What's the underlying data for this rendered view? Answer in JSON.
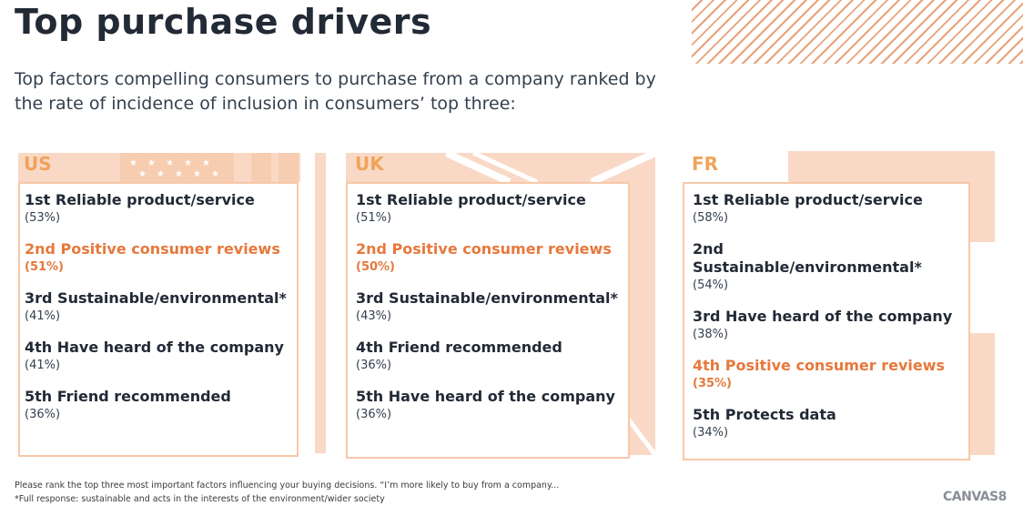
{
  "title": "Top purchase drivers",
  "subtitle": "Top factors compelling consumers to purchase from a company ranked by the rate of incidence of inclusion in consumers’ top three:",
  "colors": {
    "accent": "#e6783c",
    "country": "#f0a35a",
    "border": "#f7c8a8",
    "flag_bg": "#f9d9c5"
  },
  "panels": [
    {
      "country": "US",
      "items": [
        {
          "rank": "1st Reliable product/service",
          "pct": "(53%)",
          "highlight": false
        },
        {
          "rank": "2nd Positive consumer reviews",
          "pct": "(51%)",
          "highlight": true
        },
        {
          "rank": "3rd Sustainable/environmental*",
          "pct": "(41%)",
          "highlight": false
        },
        {
          "rank": "4th Have heard of the company",
          "pct": "(41%)",
          "highlight": false
        },
        {
          "rank": "5th Friend recommended",
          "pct": "(36%)",
          "highlight": false
        }
      ]
    },
    {
      "country": "UK",
      "items": [
        {
          "rank": "1st Reliable product/service",
          "pct": "(51%)",
          "highlight": false
        },
        {
          "rank": "2nd Positive consumer reviews",
          "pct": "(50%)",
          "highlight": true
        },
        {
          "rank": "3rd Sustainable/environmental*",
          "pct": "(43%)",
          "highlight": false
        },
        {
          "rank": "4th Friend recommended",
          "pct": "(36%)",
          "highlight": false
        },
        {
          "rank": "5th Have heard of the company",
          "pct": "(36%)",
          "highlight": false
        }
      ]
    },
    {
      "country": "FR",
      "items": [
        {
          "rank": "1st Reliable product/service",
          "pct": "(58%)",
          "highlight": false
        },
        {
          "rank": "2nd Sustainable/environmental*",
          "pct": "(54%)",
          "highlight": false
        },
        {
          "rank": "3rd Have heard of the company",
          "pct": "(38%)",
          "highlight": false
        },
        {
          "rank": "4th Positive consumer reviews",
          "pct": "(35%)",
          "highlight": true
        },
        {
          "rank": "5th Protects data",
          "pct": "(34%)",
          "highlight": false
        }
      ]
    }
  ],
  "footnotes": [
    "Please rank the top three most important factors influencing your buying decisions. “I’m more likely to buy from a company...",
    "*Full response: sustainable and acts in the interests of the environment/wider society"
  ],
  "logo": "CANVAS8"
}
